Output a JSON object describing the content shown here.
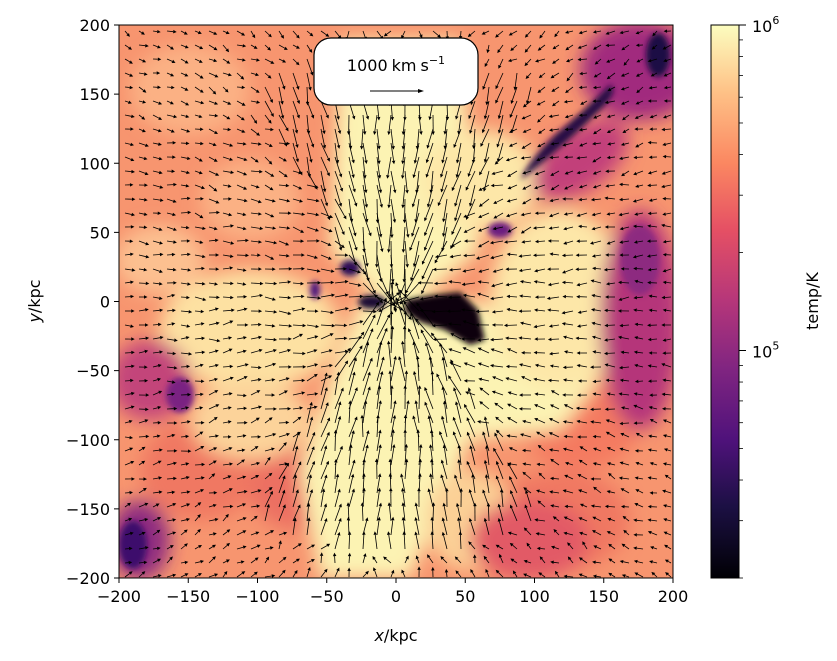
{
  "chart_data": {
    "type": "heatmap",
    "title": "",
    "xlabel": "x/kpc",
    "ylabel": "y/kpc",
    "xlim": [
      -200,
      200
    ],
    "ylim": [
      -200,
      200
    ],
    "x_ticks": [
      -200,
      -150,
      -100,
      -50,
      0,
      50,
      100,
      150,
      200
    ],
    "y_ticks": [
      -200,
      -150,
      -100,
      -50,
      0,
      50,
      100,
      150,
      200
    ],
    "x_tick_labels": [
      "−200",
      "−150",
      "−100",
      "−50",
      "0",
      "50",
      "100",
      "150",
      "200"
    ],
    "y_tick_labels": [
      "−200",
      "−150",
      "−100",
      "−50",
      "0",
      "50",
      "100",
      "150",
      "200"
    ],
    "colorbar": {
      "label": "temp/K",
      "scale": "log",
      "range": [
        20000,
        1000000
      ],
      "colormap": "magma",
      "major_ticks": [
        100000,
        1000000
      ],
      "major_tick_labels": [
        "10^5",
        "10^6"
      ],
      "minor_ticks": [
        20000,
        30000,
        40000,
        50000,
        60000,
        70000,
        80000,
        90000,
        200000,
        300000,
        400000,
        500000,
        600000,
        700000,
        800000,
        900000
      ]
    },
    "velocity_key": {
      "value": 1000,
      "label": "1000 km s^-1"
    },
    "temperature_field": {
      "description_grid_units": "kpc",
      "background_K": 300000,
      "features": [
        {
          "kind": "hot-bicone",
          "center": [
            0,
            0
          ],
          "temp_K": 1000000
        },
        {
          "kind": "cold-clump",
          "center": [
            45,
            -10
          ],
          "temp_K": 20000
        },
        {
          "kind": "cold-clump",
          "center": [
            -20,
            0
          ],
          "temp_K": 30000
        },
        {
          "kind": "cold-filament",
          "center": [
            120,
            110
          ],
          "temp_K": 40000
        },
        {
          "kind": "cool-region",
          "center": [
            190,
            180
          ],
          "temp_K": 60000
        },
        {
          "kind": "cool-region",
          "center": [
            185,
            -20
          ],
          "temp_K": 90000
        },
        {
          "kind": "cool-region",
          "center": [
            -190,
            -180
          ],
          "temp_K": 40000
        },
        {
          "kind": "cool-region",
          "center": [
            -165,
            -40
          ],
          "temp_K": 120000
        }
      ]
    }
  }
}
